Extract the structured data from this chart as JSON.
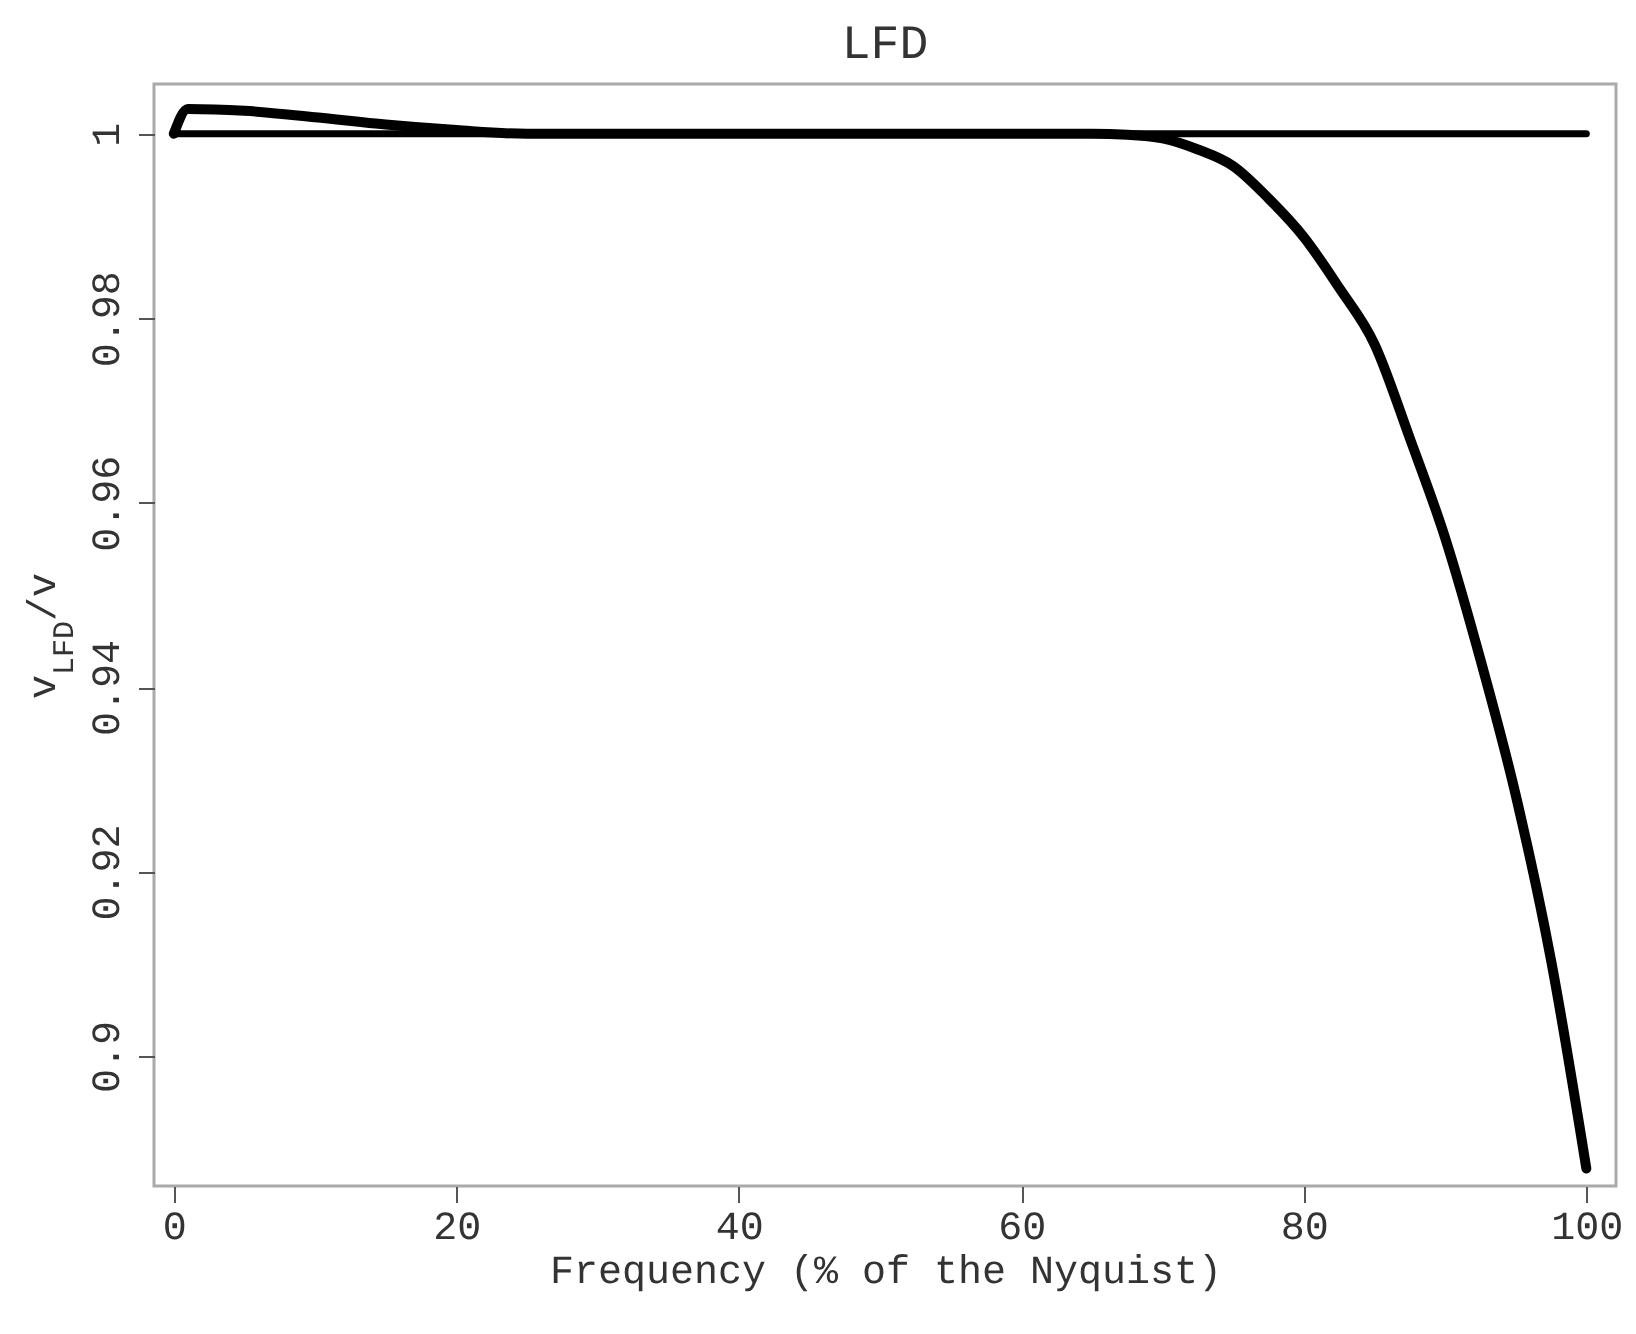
{
  "chart_data": {
    "type": "line",
    "title": "LFD",
    "xlabel": "Frequency (% of the Nyquist)",
    "ylabel": "v$_{LFD}$/v",
    "xlim": [
      -1.4,
      102.1
    ],
    "ylim": [
      0.8859,
      1.0054
    ],
    "xticks": [
      0,
      20,
      40,
      60,
      80,
      100
    ],
    "yticks": [
      0.9,
      0.92,
      0.94,
      0.96,
      0.98,
      1
    ],
    "grid": false,
    "marker": "none",
    "line_style": "solid",
    "series": [
      {
        "color": "#000000",
        "x": [
          0,
          1,
          5,
          10,
          15,
          20,
          25,
          40,
          60,
          65,
          67.5,
          70,
          72.5,
          75,
          77.5,
          80,
          82.5,
          85,
          87.5,
          90,
          92.5,
          95,
          97.5,
          100
        ],
        "values": [
          1,
          1.0027,
          1.0025,
          1.0018,
          1.001,
          1.0004,
          1,
          1,
          1,
          1,
          0.9999,
          0.9995,
          0.9983,
          0.9965,
          0.993,
          0.9888,
          0.9833,
          0.9772,
          0.967,
          0.9562,
          0.943,
          0.9283,
          0.9104,
          0.8878
        ]
      },
      {
        "color": "#000000",
        "x": [
          0,
          100
        ],
        "values": [
          1,
          1
        ]
      }
    ]
  }
}
